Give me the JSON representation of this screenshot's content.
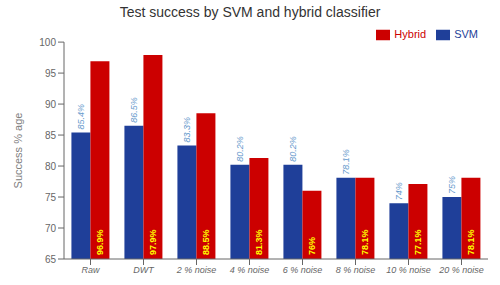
{
  "chart_data": {
    "type": "bar",
    "title": "Test success by SVM and hybrid classifier",
    "ylabel": "Success % age",
    "categories": [
      "Raw",
      "DWT",
      "2 % noise",
      "4 % noise",
      "6 % noise",
      "8 % noise",
      "10 % noise",
      "20 % noise"
    ],
    "series": [
      {
        "name": "SVM",
        "color": "#1f3f99",
        "values": [
          85.4,
          86.5,
          83.3,
          80.2,
          80.2,
          78.1,
          74.0,
          75.0
        ],
        "value_labels": [
          "85.4%",
          "86.5%",
          "83.3%",
          "80.2%",
          "80.2%",
          "78.1%",
          "74%",
          "75%"
        ]
      },
      {
        "name": "Hybrid",
        "color": "#cc0000",
        "values": [
          96.9,
          97.9,
          88.5,
          81.3,
          76.0,
          78.1,
          77.1,
          78.1
        ],
        "value_labels": [
          "96.9%",
          "97.9%",
          "88.5%",
          "81.3%",
          "76%",
          "78.1%",
          "77.1%",
          "78.1%"
        ]
      }
    ],
    "ylim": [
      65,
      100
    ],
    "yticks": [
      65,
      70,
      75,
      80,
      85,
      90,
      95,
      100
    ],
    "legend": "upper right",
    "data_labels": true,
    "grid": false
  }
}
